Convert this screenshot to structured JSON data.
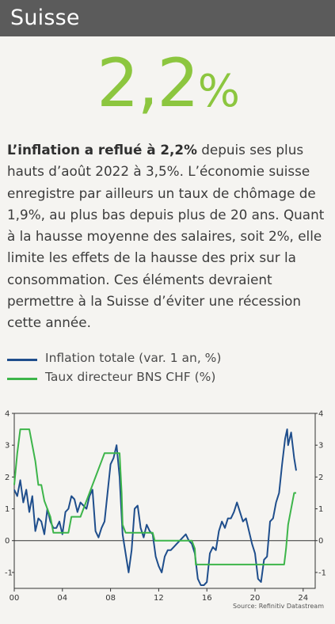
{
  "header": {
    "title": "Suisse"
  },
  "highlight": {
    "number": "2,2",
    "unit": "%"
  },
  "body": {
    "bold_lead": "L’inflation a reflué à 2,2%",
    "text": " depuis ses plus hauts d’août 2022 à 3,5%. L’économie suisse enregistre par ailleurs un taux de chômage de 1,9%, au plus bas depuis plus de 20 ans. Quant à la hausse moyenne des salaires, soit 2%, elle limite les effets de la hausse des prix sur la consommation. Ces éléments devraient permettre à la Suisse d’éviter une récession cette année."
  },
  "legend": [
    {
      "label": "Inflation totale (var. 1 an, %)",
      "color": "#1f4e8c"
    },
    {
      "label": "Taux directeur BNS CHF (%)",
      "color": "#3db54a"
    }
  ],
  "source": "Source: Refinitiv Datastream",
  "chart_data": {
    "type": "line",
    "xlim": [
      2000,
      2025
    ],
    "ylim": [
      -1.5,
      4
    ],
    "x_ticks": [
      2000,
      2004,
      2008,
      2012,
      2016,
      2020,
      2024
    ],
    "x_tick_labels": [
      "00",
      "04",
      "08",
      "12",
      "16",
      "20",
      "24"
    ],
    "y_ticks": [
      -1,
      0,
      1,
      2,
      3,
      4
    ],
    "y_tick_labels": [
      "-1",
      "0",
      "1",
      "2",
      "3",
      "4"
    ],
    "grid": false,
    "series": [
      {
        "name": "Inflation totale (var. 1 an, %)",
        "color": "#1f4e8c",
        "x": [
          2000.0,
          2000.25,
          2000.5,
          2000.75,
          2001.0,
          2001.25,
          2001.5,
          2001.75,
          2002.0,
          2002.25,
          2002.5,
          2002.75,
          2003.0,
          2003.25,
          2003.5,
          2003.75,
          2004.0,
          2004.25,
          2004.5,
          2004.75,
          2005.0,
          2005.25,
          2005.5,
          2005.75,
          2006.0,
          2006.25,
          2006.5,
          2006.75,
          2007.0,
          2007.25,
          2007.5,
          2007.75,
          2008.0,
          2008.25,
          2008.5,
          2008.75,
          2009.0,
          2009.25,
          2009.5,
          2009.75,
          2010.0,
          2010.25,
          2010.5,
          2010.75,
          2011.0,
          2011.25,
          2011.5,
          2011.75,
          2012.0,
          2012.25,
          2012.5,
          2012.75,
          2013.0,
          2013.25,
          2013.5,
          2013.75,
          2014.0,
          2014.25,
          2014.5,
          2014.75,
          2015.0,
          2015.25,
          2015.5,
          2015.75,
          2016.0,
          2016.25,
          2016.5,
          2016.75,
          2017.0,
          2017.25,
          2017.5,
          2017.75,
          2018.0,
          2018.25,
          2018.5,
          2018.75,
          2019.0,
          2019.25,
          2019.5,
          2019.75,
          2020.0,
          2020.25,
          2020.5,
          2020.75,
          2021.0,
          2021.25,
          2021.5,
          2021.75,
          2022.0,
          2022.25,
          2022.5,
          2022.67,
          2022.75,
          2023.0,
          2023.25,
          2023.42
        ],
        "y": [
          1.6,
          1.4,
          1.9,
          1.2,
          1.6,
          0.9,
          1.4,
          0.3,
          0.7,
          0.6,
          0.2,
          1.0,
          0.6,
          0.4,
          0.4,
          0.6,
          0.2,
          0.9,
          1.0,
          1.4,
          1.3,
          0.9,
          1.2,
          1.1,
          1.0,
          1.4,
          1.6,
          0.3,
          0.1,
          0.4,
          0.6,
          1.5,
          2.4,
          2.6,
          3.0,
          2.0,
          0.2,
          -0.4,
          -1.0,
          -0.3,
          1.0,
          1.1,
          0.4,
          0.1,
          0.5,
          0.3,
          0.2,
          -0.5,
          -0.8,
          -1.0,
          -0.5,
          -0.3,
          -0.3,
          -0.2,
          -0.1,
          0.0,
          0.1,
          0.2,
          0.0,
          -0.1,
          -0.4,
          -1.2,
          -1.4,
          -1.4,
          -1.3,
          -0.4,
          -0.2,
          -0.3,
          0.3,
          0.6,
          0.4,
          0.7,
          0.7,
          0.9,
          1.2,
          0.9,
          0.6,
          0.7,
          0.3,
          -0.1,
          -0.4,
          -1.2,
          -1.3,
          -0.6,
          -0.5,
          0.6,
          0.7,
          1.2,
          1.5,
          2.4,
          3.2,
          3.5,
          3.0,
          3.4,
          2.6,
          2.2
        ]
      },
      {
        "name": "Taux directeur BNS CHF (%)",
        "color": "#3db54a",
        "x": [
          2000.0,
          2000.25,
          2000.5,
          2001.25,
          2001.5,
          2001.75,
          2002.0,
          2002.25,
          2002.5,
          2003.0,
          2003.25,
          2004.5,
          2004.75,
          2005.5,
          2005.75,
          2006.0,
          2006.25,
          2006.5,
          2006.75,
          2007.0,
          2007.25,
          2007.5,
          2008.75,
          2008.92,
          2009.0,
          2009.25,
          2011.5,
          2011.67,
          2014.75,
          2015.0,
          2015.08,
          2022.42,
          2022.58,
          2022.75,
          2023.0,
          2023.25,
          2023.42
        ],
        "y": [
          1.75,
          2.75,
          3.5,
          3.5,
          3.0,
          2.5,
          1.75,
          1.75,
          1.25,
          0.75,
          0.25,
          0.25,
          0.75,
          0.75,
          1.0,
          1.25,
          1.5,
          1.75,
          2.0,
          2.25,
          2.5,
          2.75,
          2.75,
          1.5,
          0.5,
          0.25,
          0.25,
          0.0,
          0.0,
          -0.25,
          -0.75,
          -0.75,
          -0.25,
          0.5,
          1.0,
          1.5,
          1.5
        ]
      }
    ]
  }
}
